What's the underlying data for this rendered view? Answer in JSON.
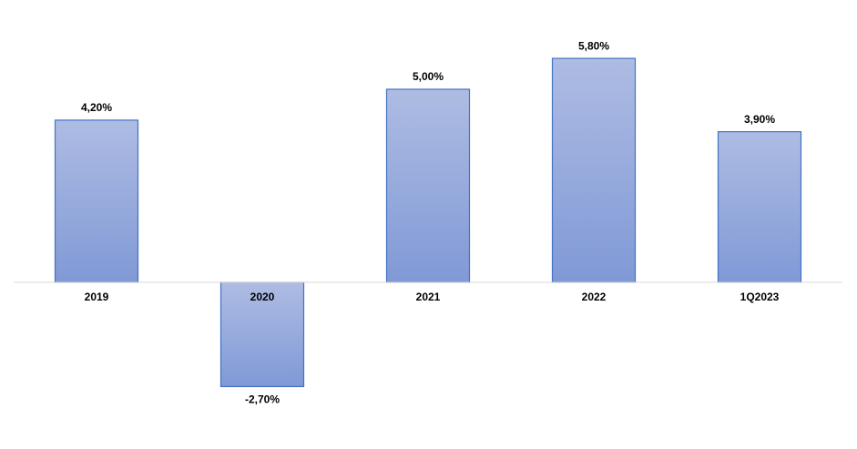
{
  "chart_data": {
    "type": "bar",
    "categories": [
      "2019",
      "2020",
      "2021",
      "2022",
      "1Q2023"
    ],
    "values": [
      4.2,
      -2.7,
      5.0,
      5.8,
      3.9
    ],
    "value_labels": [
      "4,20%",
      "-2,70%",
      "5,00%",
      "5,80%",
      "3,90%"
    ],
    "color": "#4472c4"
  }
}
